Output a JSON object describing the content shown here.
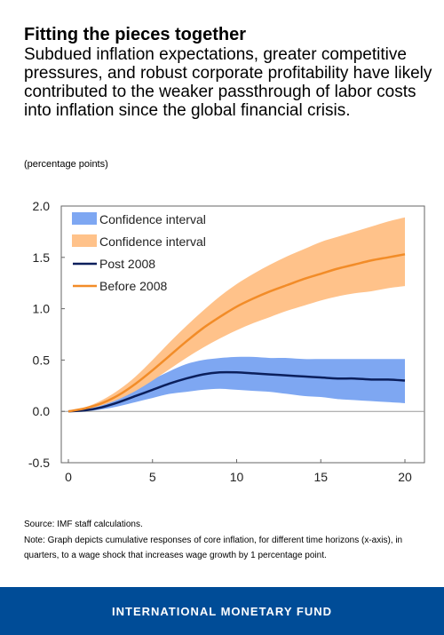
{
  "header": {
    "title": "Fitting the pieces together",
    "subtitle": "Subdued inflation expectations, greater competitive pressures, and robust corporate profitability have likely contributed to the weaker passthrough of labor costs into inflation since the global financial crisis."
  },
  "unit_label": "(percentage points)",
  "footer": {
    "source": "Source: IMF staff calculations.",
    "note": "Note: Graph depicts cumulative responses of core inflation, for different time horizons (x-axis), in quarters, to a wage shock that increases wage growth by 1 percentage point."
  },
  "brand": "INTERNATIONAL MONETARY FUND",
  "colors": {
    "post_line": "#0b1f5c",
    "before_line": "#f28c28",
    "post_band": "#7ea7f2",
    "before_band": "#ffc28a",
    "brand_band": "#004c97"
  },
  "chart_data": {
    "type": "line",
    "xlim": [
      0,
      20
    ],
    "ylim": [
      -0.5,
      2.0
    ],
    "x_ticks": [
      "0",
      "5",
      "10",
      "15",
      "20"
    ],
    "y_ticks": [
      "2.0",
      "1.5",
      "1.0",
      "0.5",
      "0.0",
      "-0.5"
    ],
    "grid": false,
    "legend_position": "top-left",
    "x": [
      0,
      1,
      2,
      3,
      4,
      5,
      6,
      7,
      8,
      9,
      10,
      11,
      12,
      13,
      14,
      15,
      16,
      17,
      18,
      19,
      20
    ],
    "series": [
      {
        "name": "Post 2008",
        "kind": "line",
        "color": "#0b1f5c",
        "values": [
          0.0,
          0.01,
          0.04,
          0.09,
          0.15,
          0.21,
          0.27,
          0.32,
          0.36,
          0.38,
          0.38,
          0.37,
          0.36,
          0.35,
          0.34,
          0.33,
          0.32,
          0.32,
          0.31,
          0.31,
          0.3
        ]
      },
      {
        "name": "Before 2008",
        "kind": "line",
        "color": "#f28c28",
        "values": [
          0.0,
          0.03,
          0.08,
          0.16,
          0.27,
          0.4,
          0.54,
          0.68,
          0.81,
          0.92,
          1.02,
          1.1,
          1.17,
          1.23,
          1.29,
          1.34,
          1.39,
          1.43,
          1.47,
          1.5,
          1.53
        ]
      },
      {
        "name": "Confidence interval",
        "kind": "band",
        "color": "#7ea7f2",
        "upper": [
          0.0,
          0.02,
          0.06,
          0.13,
          0.22,
          0.31,
          0.39,
          0.46,
          0.5,
          0.52,
          0.53,
          0.53,
          0.52,
          0.52,
          0.51,
          0.51,
          0.51,
          0.51,
          0.51,
          0.51,
          0.51
        ],
        "lower": [
          0.0,
          0.0,
          0.02,
          0.05,
          0.09,
          0.13,
          0.17,
          0.19,
          0.21,
          0.22,
          0.21,
          0.2,
          0.19,
          0.17,
          0.15,
          0.14,
          0.12,
          0.11,
          0.1,
          0.09,
          0.08
        ]
      },
      {
        "name": "Confidence interval",
        "kind": "band",
        "color": "#ffc28a",
        "upper": [
          0.0,
          0.04,
          0.11,
          0.21,
          0.34,
          0.5,
          0.67,
          0.83,
          0.98,
          1.12,
          1.24,
          1.34,
          1.43,
          1.51,
          1.58,
          1.65,
          1.7,
          1.75,
          1.8,
          1.85,
          1.89
        ],
        "lower": [
          0.0,
          0.02,
          0.06,
          0.12,
          0.2,
          0.3,
          0.41,
          0.52,
          0.62,
          0.71,
          0.79,
          0.86,
          0.92,
          0.98,
          1.03,
          1.08,
          1.12,
          1.15,
          1.17,
          1.2,
          1.22
        ]
      }
    ],
    "legend": [
      "Confidence interval",
      "Confidence interval",
      "Post 2008",
      "Before 2008"
    ]
  }
}
